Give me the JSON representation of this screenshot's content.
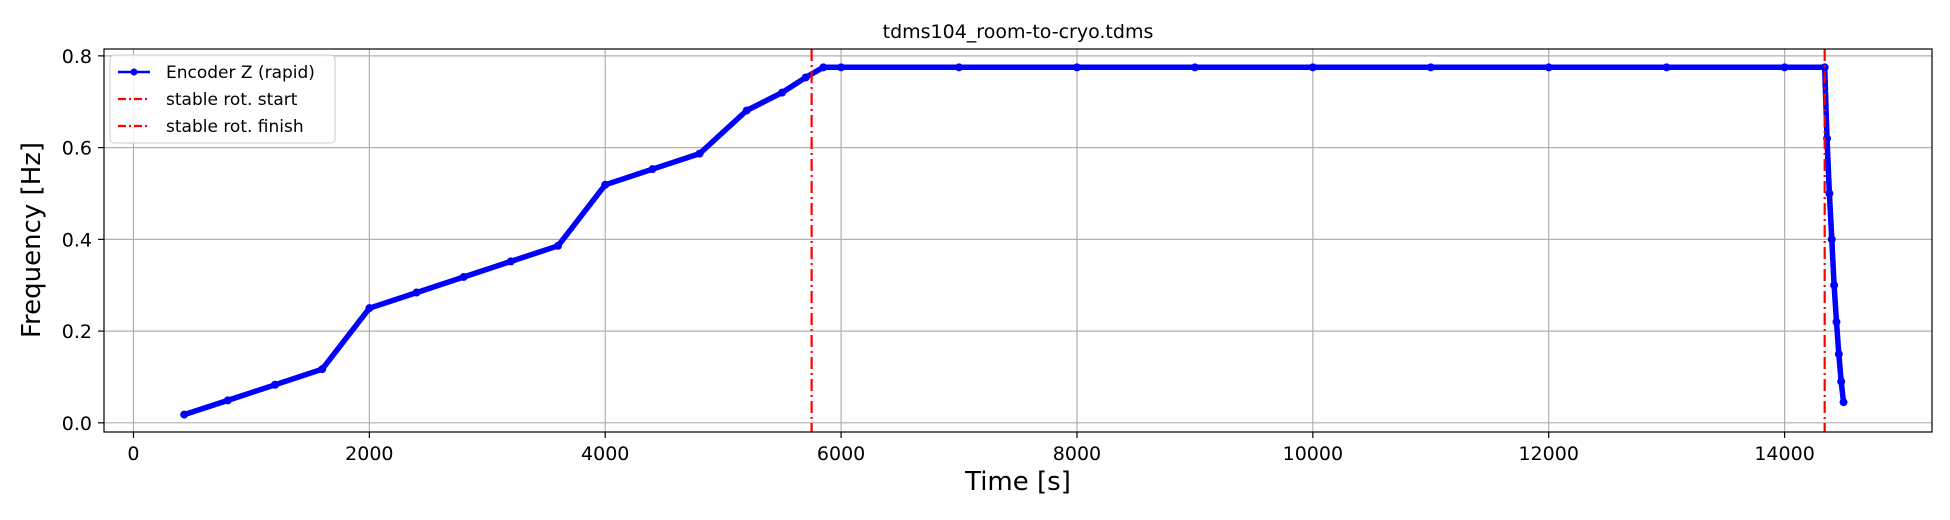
{
  "chart_data": {
    "type": "line",
    "title": "tdms104_room-to-cryo.tdms",
    "xlabel": "Time [s]",
    "ylabel": "Frequency [Hz]",
    "xlim": [
      -250,
      15250
    ],
    "ylim": [
      -0.02,
      0.815
    ],
    "xticks": [
      0,
      2000,
      4000,
      6000,
      8000,
      10000,
      12000,
      14000
    ],
    "yticks": [
      0.0,
      0.2,
      0.4,
      0.6,
      0.8
    ],
    "xtick_labels": [
      "0",
      "2000",
      "4000",
      "6000",
      "8000",
      "10000",
      "12000",
      "14000"
    ],
    "ytick_labels": [
      "0.0",
      "0.2",
      "0.4",
      "0.6",
      "0.8"
    ],
    "grid": true,
    "legend_position": "top-left",
    "series": [
      {
        "name": "Encoder Z (rapid)",
        "color": "#0000ff",
        "marker": "dot",
        "points": [
          [
            430,
            0.018
          ],
          [
            800,
            0.049
          ],
          [
            1200,
            0.083
          ],
          [
            1600,
            0.117
          ],
          [
            2000,
            0.25
          ],
          [
            2400,
            0.284
          ],
          [
            2800,
            0.318
          ],
          [
            3200,
            0.352
          ],
          [
            3600,
            0.386
          ],
          [
            4000,
            0.519
          ],
          [
            4400,
            0.553
          ],
          [
            4800,
            0.587
          ],
          [
            5200,
            0.681
          ],
          [
            5500,
            0.72
          ],
          [
            5700,
            0.753
          ],
          [
            5850,
            0.775
          ],
          [
            6000,
            0.775
          ],
          [
            7000,
            0.775
          ],
          [
            8000,
            0.775
          ],
          [
            9000,
            0.775
          ],
          [
            10000,
            0.775
          ],
          [
            11000,
            0.775
          ],
          [
            12000,
            0.775
          ],
          [
            13000,
            0.775
          ],
          [
            14000,
            0.775
          ],
          [
            14340,
            0.775
          ],
          [
            14360,
            0.62
          ],
          [
            14380,
            0.5
          ],
          [
            14400,
            0.4
          ],
          [
            14420,
            0.3
          ],
          [
            14440,
            0.22
          ],
          [
            14460,
            0.15
          ],
          [
            14480,
            0.09
          ],
          [
            14500,
            0.045
          ]
        ]
      },
      {
        "name": "stable rot. start",
        "color": "#ff0000",
        "style": "dash-dot",
        "x": 5750
      },
      {
        "name": "stable rot. finish",
        "color": "#ff0000",
        "style": "dash-dot",
        "x": 14340
      }
    ]
  }
}
